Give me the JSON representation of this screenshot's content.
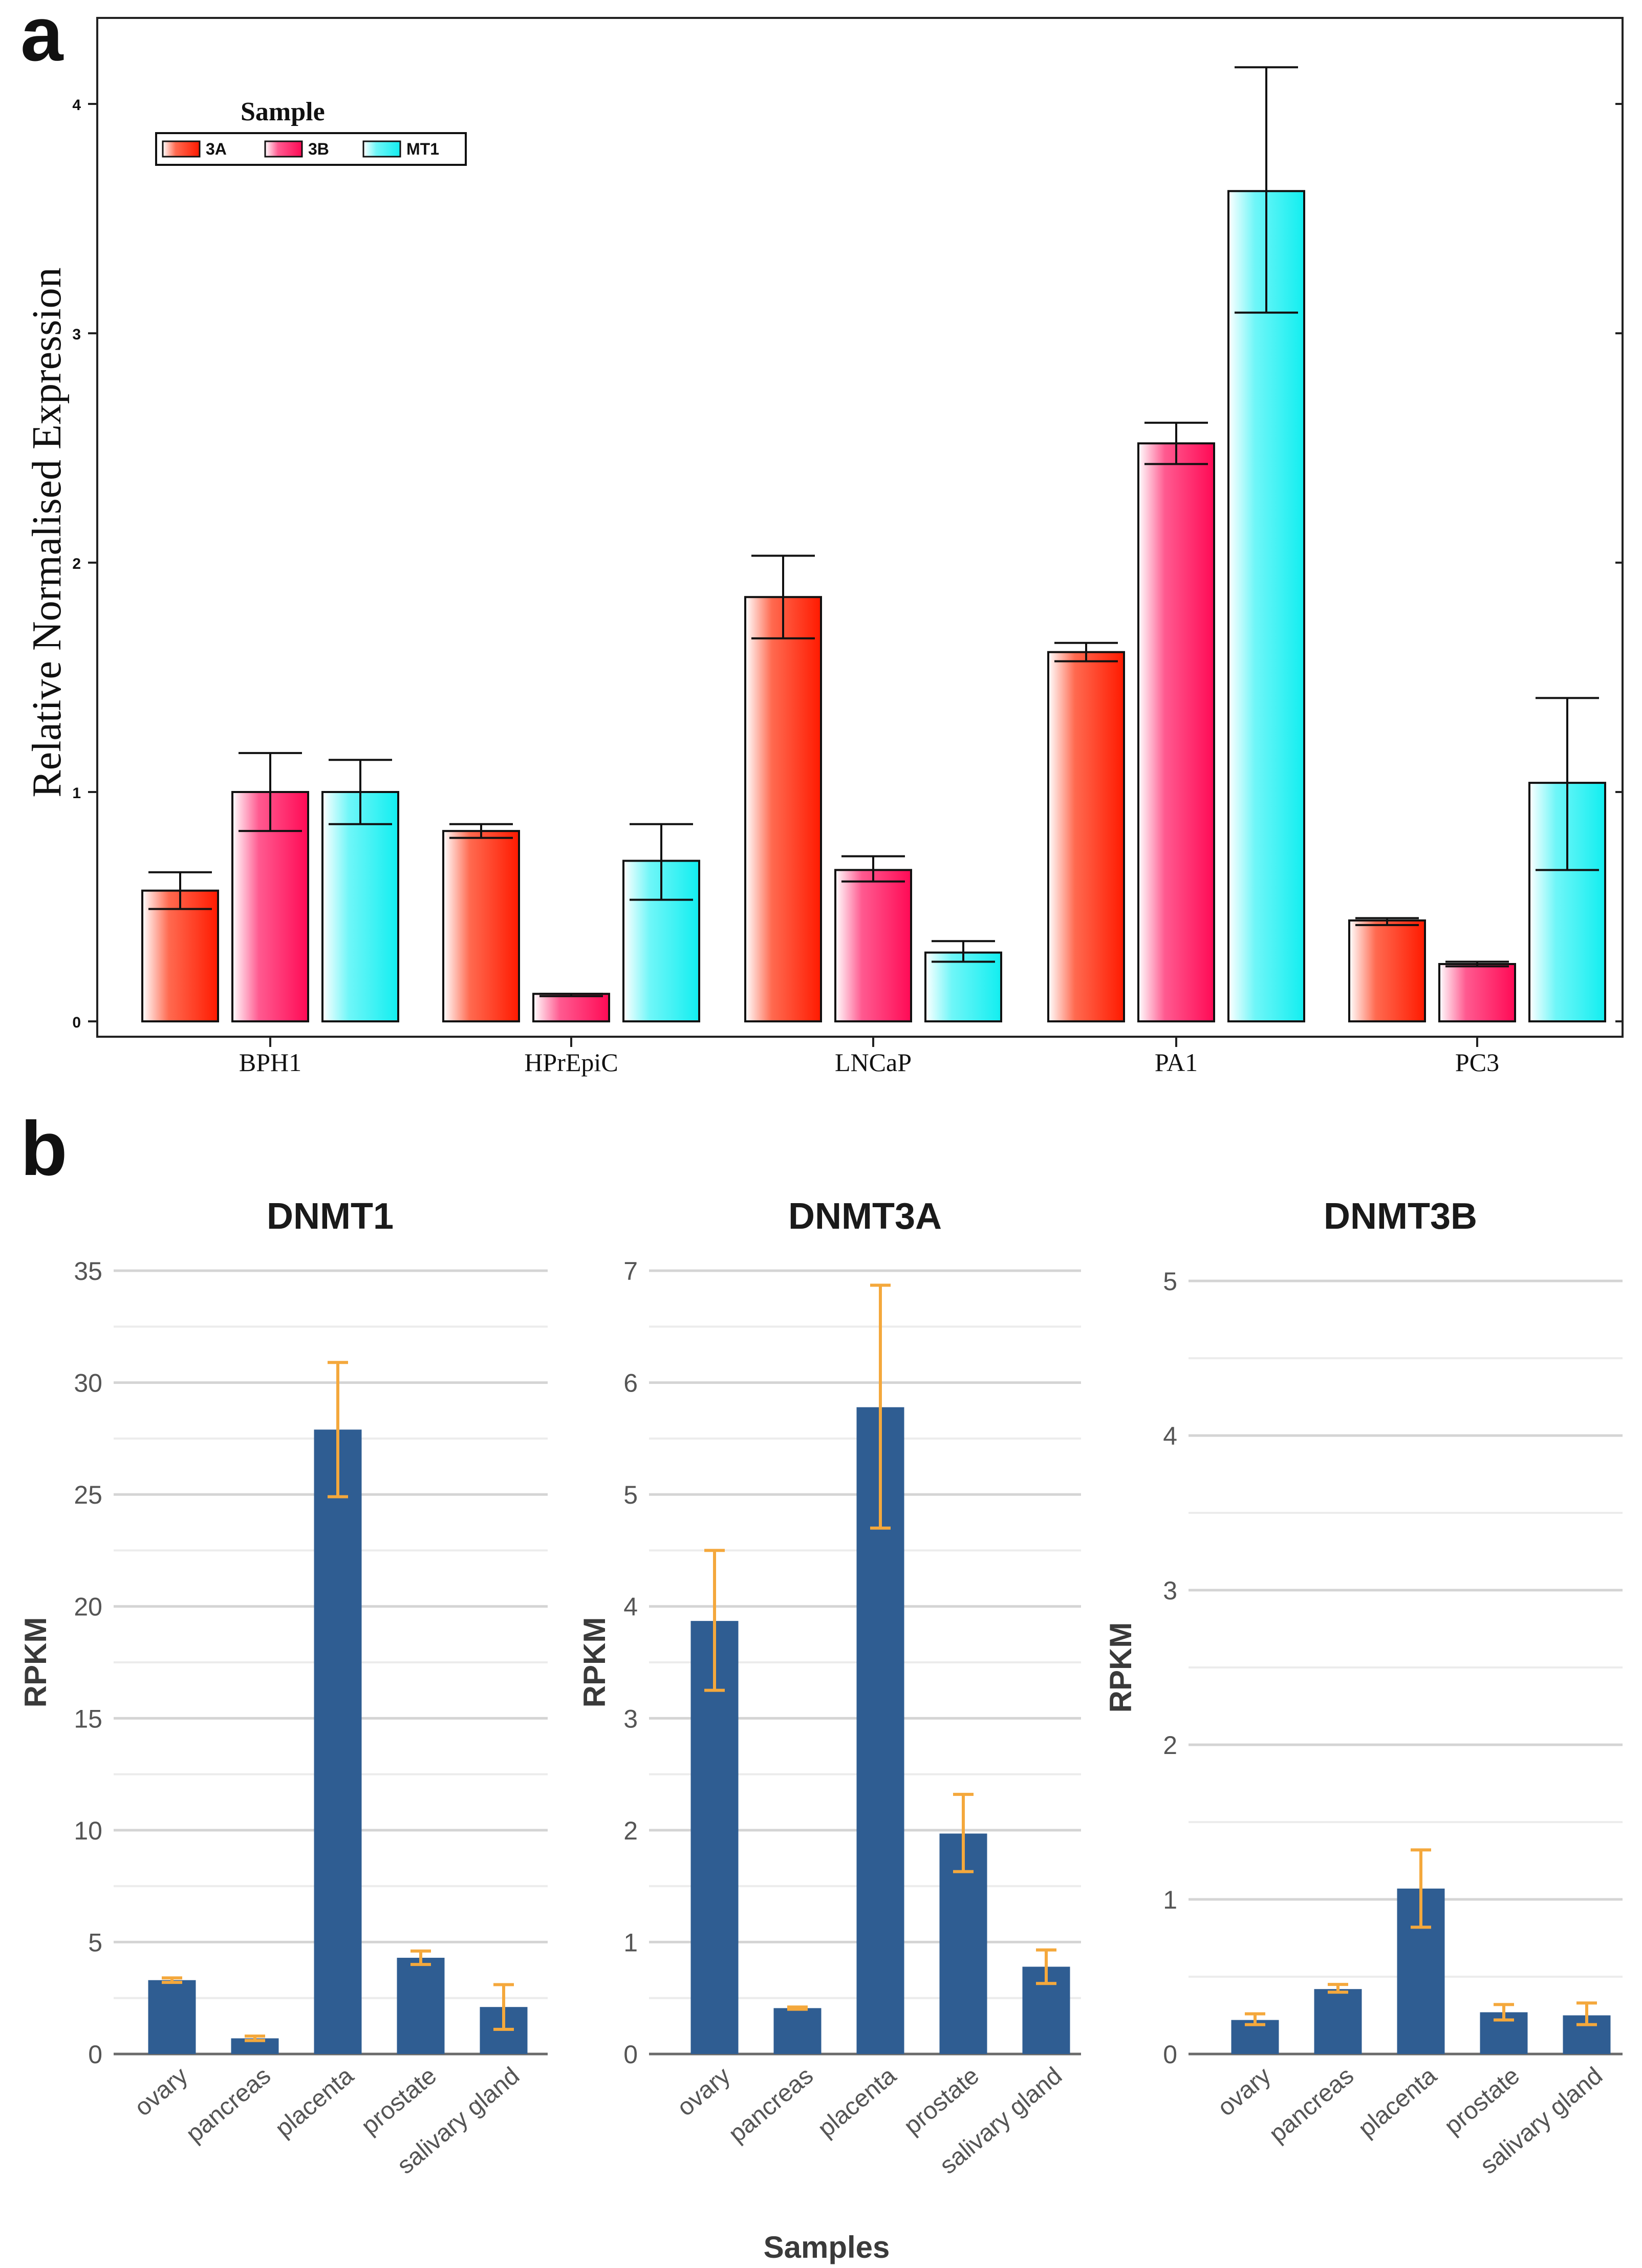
{
  "figure": {
    "panel_a_label": "a",
    "panel_b_label": "b",
    "colors": {
      "3A": "#ff2a10",
      "3B": "#ff1f66",
      "MT1": "#1ef0f2",
      "panel_b_bar": "#2f5d92",
      "panel_b_err": "#f4a83c",
      "grid": "#dcdcdc"
    }
  },
  "chart_data": [
    {
      "id": "panel-a",
      "type": "bar",
      "title": "",
      "xlabel": "",
      "ylabel": "Relative Normalised Expression",
      "ylim": [
        0,
        4.4
      ],
      "yticks": [
        "0",
        "1",
        "2",
        "3",
        "4"
      ],
      "legend": {
        "title": "Sample",
        "position": "top-left"
      },
      "categories": [
        "BPH1",
        "HPrEpiC",
        "LNCaP",
        "PA1",
        "PC3"
      ],
      "series": [
        {
          "name": "3A",
          "values": [
            0.57,
            0.83,
            1.85,
            1.61,
            0.44
          ],
          "err_low": [
            0.49,
            0.8,
            1.67,
            1.57,
            0.42
          ],
          "err_high": [
            0.65,
            0.86,
            2.03,
            1.65,
            0.45
          ]
        },
        {
          "name": "3B",
          "values": [
            1.0,
            0.12,
            0.66,
            2.52,
            0.25
          ],
          "err_low": [
            0.83,
            0.11,
            0.61,
            2.43,
            0.24
          ],
          "err_high": [
            1.17,
            0.12,
            0.72,
            2.61,
            0.26
          ]
        },
        {
          "name": "MT1",
          "values": [
            1.0,
            0.7,
            0.3,
            3.62,
            1.04
          ],
          "err_low": [
            0.86,
            0.53,
            0.26,
            3.09,
            0.66
          ],
          "err_high": [
            1.14,
            0.86,
            0.35,
            4.16,
            1.41
          ]
        }
      ]
    },
    {
      "id": "dnmt1",
      "type": "bar",
      "title": "DNMT1",
      "xlabel": "",
      "ylabel": "RPKM",
      "ylim": [
        0,
        35
      ],
      "yticks": [
        "0",
        "5",
        "10",
        "15",
        "20",
        "25",
        "30",
        "35"
      ],
      "categories": [
        "ovary",
        "pancreas",
        "placenta",
        "prostate",
        "salivary gland"
      ],
      "values": [
        3.3,
        0.7,
        27.9,
        4.3,
        2.1
      ],
      "err_low": [
        3.2,
        0.6,
        24.9,
        4.0,
        1.1
      ],
      "err_high": [
        3.4,
        0.8,
        30.9,
        4.6,
        3.1
      ]
    },
    {
      "id": "dnmt3a",
      "type": "bar",
      "title": "DNMT3A",
      "xlabel": "Samples",
      "ylabel": "RPKM",
      "ylim": [
        0,
        7
      ],
      "yticks": [
        "0",
        "1",
        "2",
        "3",
        "4",
        "5",
        "6",
        "7"
      ],
      "categories": [
        "ovary",
        "pancreas",
        "placenta",
        "prostate",
        "salivary gland"
      ],
      "values": [
        3.87,
        0.41,
        5.78,
        1.97,
        0.78
      ],
      "err_low": [
        3.25,
        0.4,
        4.7,
        1.63,
        0.63
      ],
      "err_high": [
        4.5,
        0.42,
        6.87,
        2.32,
        0.93
      ]
    },
    {
      "id": "dnmt3b",
      "type": "bar",
      "title": "DNMT3B",
      "xlabel": "",
      "ylabel": "RPKM",
      "ylim": [
        0,
        5
      ],
      "yticks": [
        "0",
        "1",
        "2",
        "3",
        "4",
        "5"
      ],
      "categories": [
        "ovary",
        "pancreas",
        "placenta",
        "prostate",
        "salivary gland"
      ],
      "values": [
        0.22,
        0.42,
        1.07,
        0.27,
        0.25
      ],
      "err_low": [
        0.19,
        0.4,
        0.82,
        0.22,
        0.19
      ],
      "err_high": [
        0.26,
        0.45,
        1.32,
        0.32,
        0.33
      ]
    }
  ]
}
